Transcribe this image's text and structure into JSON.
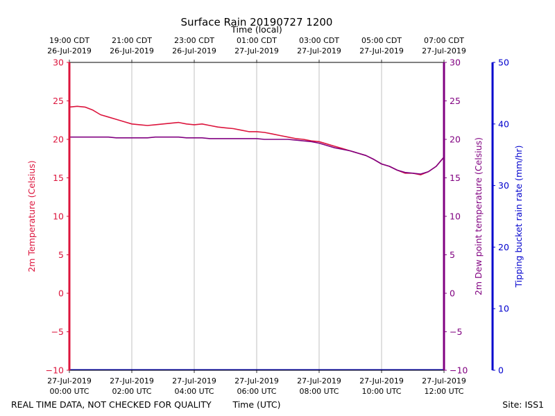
{
  "chart_data": {
    "type": "line",
    "title": "Surface Rain 20190727 1200",
    "top_axis_label": "Time (local)",
    "xlabel": "Time (UTC)",
    "ylabel_left": "2m Temperature (Celsius)",
    "ylabel_right": "2m Dew point temperature (Celsius)",
    "ylabel_rain": "Tipping bucket rain rate (mm/hr)",
    "footer_left": "REAL TIME DATA, NOT CHECKED FOR QUALITY",
    "footer_right": "Site: ISS1",
    "xlim": [
      0,
      12
    ],
    "ylim": [
      -10,
      30
    ],
    "rain_ylim": [
      0,
      50
    ],
    "x_ticks": [
      {
        "x": 0,
        "line1": "27-Jul-2019",
        "line2": "00:00 UTC"
      },
      {
        "x": 2,
        "line1": "27-Jul-2019",
        "line2": "02:00 UTC"
      },
      {
        "x": 4,
        "line1": "27-Jul-2019",
        "line2": "04:00 UTC"
      },
      {
        "x": 6,
        "line1": "27-Jul-2019",
        "line2": "06:00 UTC"
      },
      {
        "x": 8,
        "line1": "27-Jul-2019",
        "line2": "08:00 UTC"
      },
      {
        "x": 10,
        "line1": "27-Jul-2019",
        "line2": "10:00 UTC"
      },
      {
        "x": 12,
        "line1": "27-Jul-2019",
        "line2": "12:00 UTC"
      }
    ],
    "top_ticks": [
      {
        "x": 0,
        "line1": "19:00 CDT",
        "line2": "26-Jul-2019"
      },
      {
        "x": 2,
        "line1": "21:00 CDT",
        "line2": "26-Jul-2019"
      },
      {
        "x": 4,
        "line1": "23:00 CDT",
        "line2": "26-Jul-2019"
      },
      {
        "x": 6,
        "line1": "01:00 CDT",
        "line2": "27-Jul-2019"
      },
      {
        "x": 8,
        "line1": "03:00 CDT",
        "line2": "27-Jul-2019"
      },
      {
        "x": 10,
        "line1": "05:00 CDT",
        "line2": "27-Jul-2019"
      },
      {
        "x": 12,
        "line1": "07:00 CDT",
        "line2": "27-Jul-2019"
      }
    ],
    "y_ticks": [
      {
        "v": 30,
        "label": "30"
      },
      {
        "v": 25,
        "label": "25"
      },
      {
        "v": 20,
        "label": "20"
      },
      {
        "v": 15,
        "label": "15"
      },
      {
        "v": 10,
        "label": "10"
      },
      {
        "v": 5,
        "label": "5"
      },
      {
        "v": 0,
        "label": "0"
      },
      {
        "v": -5,
        "label": "−5"
      },
      {
        "v": -10,
        "label": "−10"
      }
    ],
    "rain_ticks": [
      {
        "v": 50,
        "label": "50"
      },
      {
        "v": 40,
        "label": "40"
      },
      {
        "v": 30,
        "label": "30"
      },
      {
        "v": 20,
        "label": "20"
      },
      {
        "v": 10,
        "label": "10"
      },
      {
        "v": 0,
        "label": "0"
      }
    ],
    "series": [
      {
        "name": "2m Temperature",
        "color": "#dc143c",
        "x": [
          0,
          0.25,
          0.5,
          0.75,
          1.0,
          1.25,
          1.5,
          1.75,
          2.0,
          2.25,
          2.5,
          2.75,
          3.0,
          3.25,
          3.5,
          3.75,
          4.0,
          4.25,
          4.5,
          4.75,
          5.0,
          5.25,
          5.5,
          5.75,
          6.0,
          6.25,
          6.5,
          6.75,
          7.0,
          7.25,
          7.5,
          7.75,
          8.0,
          8.25,
          8.5,
          8.75,
          9.0,
          9.25,
          9.5,
          9.75,
          10.0,
          10.25,
          10.5,
          10.75,
          11.0,
          11.25,
          11.5,
          11.75,
          12.0
        ],
        "values": [
          24.2,
          24.3,
          24.2,
          23.8,
          23.2,
          22.9,
          22.6,
          22.3,
          22.0,
          21.9,
          21.8,
          21.9,
          22.0,
          22.1,
          22.2,
          22.0,
          21.9,
          22.0,
          21.8,
          21.6,
          21.5,
          21.4,
          21.2,
          21.0,
          21.0,
          20.9,
          20.7,
          20.5,
          20.3,
          20.1,
          20.0,
          19.8,
          19.7,
          19.4,
          19.1,
          18.8,
          18.5,
          18.2,
          17.9,
          17.4,
          16.8,
          16.5,
          16.0,
          15.6,
          15.6,
          15.4,
          15.8,
          16.5,
          17.7
        ]
      },
      {
        "name": "2m Dew point temperature",
        "color": "#800080",
        "x": [
          0,
          0.25,
          0.5,
          0.75,
          1.0,
          1.25,
          1.5,
          1.75,
          2.0,
          2.25,
          2.5,
          2.75,
          3.0,
          3.25,
          3.5,
          3.75,
          4.0,
          4.25,
          4.5,
          4.75,
          5.0,
          5.25,
          5.5,
          5.75,
          6.0,
          6.25,
          6.5,
          6.75,
          7.0,
          7.25,
          7.5,
          7.75,
          8.0,
          8.25,
          8.5,
          8.75,
          9.0,
          9.25,
          9.5,
          9.75,
          10.0,
          10.25,
          10.5,
          10.75,
          11.0,
          11.25,
          11.5,
          11.75,
          12.0
        ],
        "values": [
          20.3,
          20.3,
          20.3,
          20.3,
          20.3,
          20.3,
          20.2,
          20.2,
          20.2,
          20.2,
          20.2,
          20.3,
          20.3,
          20.3,
          20.3,
          20.2,
          20.2,
          20.2,
          20.1,
          20.1,
          20.1,
          20.1,
          20.1,
          20.1,
          20.1,
          20.0,
          20.0,
          20.0,
          20.0,
          19.9,
          19.8,
          19.7,
          19.5,
          19.2,
          18.9,
          18.7,
          18.5,
          18.2,
          17.9,
          17.4,
          16.8,
          16.5,
          16.0,
          15.7,
          15.6,
          15.5,
          15.8,
          16.5,
          17.7
        ]
      }
    ],
    "rain": {
      "name": "Tipping bucket rain rate",
      "color": "#0000cd",
      "x": [
        0,
        12
      ],
      "values": [
        0,
        0
      ]
    },
    "axis_colors": {
      "left": "#dc143c",
      "right": "#800080",
      "rain": "#0000cd"
    }
  }
}
